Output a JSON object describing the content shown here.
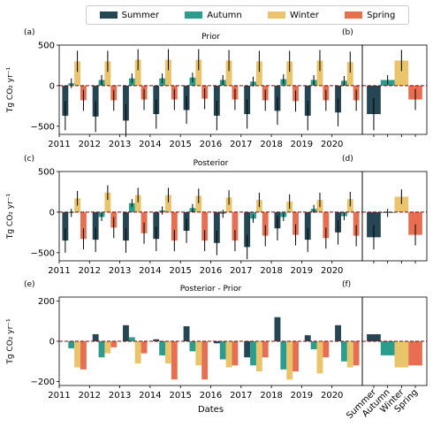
{
  "legend": {
    "placement": "top-center",
    "items": [
      {
        "label": "Summer",
        "color": "#264653"
      },
      {
        "label": "Autumn",
        "color": "#2a9d8f"
      },
      {
        "label": "Winter",
        "color": "#e9c46a"
      },
      {
        "label": "Spring",
        "color": "#e76f51"
      }
    ]
  },
  "chart_data": [
    {
      "type": "bar",
      "panel_label": "(a)",
      "title": "Prior",
      "ylabel": "Tg CO₂ yr⁻¹",
      "ylim": [
        -600,
        500
      ],
      "yticks": [
        -500,
        0,
        500
      ],
      "xtick_labels": [
        "2011",
        "2012",
        "2013",
        "2014",
        "2015",
        "2016",
        "2017",
        "2018",
        "2019",
        "2020"
      ],
      "categories": [
        "2011",
        "2012",
        "2013",
        "2014",
        "2015",
        "2016",
        "2017",
        "2018",
        "2019",
        "2020"
      ],
      "series": [
        {
          "name": "Summer",
          "values": [
            -370,
            -380,
            -430,
            -350,
            -300,
            -370,
            -350,
            -310,
            -370,
            -330
          ],
          "errors": [
            180,
            190,
            200,
            180,
            170,
            180,
            180,
            170,
            180,
            170
          ]
        },
        {
          "name": "Autumn",
          "values": [
            30,
            70,
            90,
            90,
            100,
            70,
            50,
            80,
            70,
            60
          ],
          "errors": [
            60,
            60,
            60,
            60,
            60,
            60,
            60,
            60,
            60,
            60
          ]
        },
        {
          "name": "Winter",
          "values": [
            300,
            300,
            320,
            320,
            320,
            310,
            300,
            300,
            310,
            290
          ],
          "errors": [
            130,
            130,
            130,
            130,
            130,
            130,
            130,
            130,
            130,
            130
          ]
        },
        {
          "name": "Spring",
          "values": [
            -180,
            -180,
            -170,
            -170,
            -160,
            -170,
            -180,
            -190,
            -180,
            -180
          ],
          "errors": [
            130,
            130,
            130,
            130,
            130,
            130,
            130,
            130,
            130,
            130
          ]
        }
      ]
    },
    {
      "type": "bar",
      "panel_label": "(b)",
      "ylim": [
        -600,
        500
      ],
      "categories": [
        "Summer",
        "Autumn",
        "Winter",
        "Spring"
      ],
      "values": [
        -350,
        70,
        310,
        -170
      ],
      "errors": [
        200,
        60,
        130,
        130
      ]
    },
    {
      "type": "bar",
      "panel_label": "(c)",
      "title": "Posterior",
      "ylabel": "Tg CO₂ yr⁻¹",
      "ylim": [
        -600,
        500
      ],
      "yticks": [
        -500,
        0,
        500
      ],
      "xtick_labels": [
        "2011",
        "2012",
        "2013",
        "2014",
        "2015",
        "2016",
        "2017",
        "2018",
        "2019",
        "2020"
      ],
      "categories": [
        "2011",
        "2012",
        "2013",
        "2014",
        "2015",
        "2016",
        "2017",
        "2018",
        "2019",
        "2020"
      ],
      "series": [
        {
          "name": "Summer",
          "values": [
            -350,
            -340,
            -350,
            -330,
            -230,
            -380,
            -430,
            -200,
            -340,
            -250
          ],
          "errors": [
            150,
            150,
            150,
            150,
            150,
            150,
            150,
            150,
            150,
            150
          ]
        },
        {
          "name": "Autumn",
          "values": [
            -10,
            -60,
            110,
            20,
            50,
            -20,
            -80,
            -60,
            40,
            -50
          ],
          "errors": [
            50,
            50,
            50,
            50,
            50,
            50,
            50,
            50,
            50,
            50
          ]
        },
        {
          "name": "Winter",
          "values": [
            170,
            240,
            210,
            210,
            200,
            180,
            150,
            130,
            150,
            160
          ],
          "errors": [
            90,
            90,
            90,
            90,
            90,
            90,
            90,
            90,
            90,
            90
          ]
        },
        {
          "name": "Spring",
          "values": [
            -330,
            -190,
            -260,
            -350,
            -350,
            -350,
            -290,
            -280,
            -320,
            -290
          ],
          "errors": [
            130,
            130,
            130,
            130,
            130,
            130,
            130,
            130,
            130,
            130
          ]
        }
      ]
    },
    {
      "type": "bar",
      "panel_label": "(d)",
      "ylim": [
        -600,
        500
      ],
      "categories": [
        "Summer",
        "Autumn",
        "Winter",
        "Spring"
      ],
      "values": [
        -310,
        -10,
        190,
        -280
      ],
      "errors": [
        150,
        50,
        90,
        130
      ]
    },
    {
      "type": "bar",
      "panel_label": "(e)",
      "title": "Posterior - Prior",
      "ylabel": "Tg CO₂ yr⁻¹",
      "xlabel": "Dates",
      "ylim": [
        -220,
        220
      ],
      "yticks": [
        -200,
        0,
        200
      ],
      "xtick_labels": [
        "2011",
        "2012",
        "2013",
        "2014",
        "2015",
        "2016",
        "2017",
        "2018",
        "2019",
        "2020"
      ],
      "categories": [
        "2011",
        "2012",
        "2013",
        "2014",
        "2015",
        "2016",
        "2017",
        "2018",
        "2019",
        "2020"
      ],
      "series": [
        {
          "name": "Summer",
          "values": [
            0,
            35,
            80,
            10,
            75,
            -10,
            -80,
            120,
            30,
            80
          ]
        },
        {
          "name": "Autumn",
          "values": [
            -35,
            -80,
            20,
            -70,
            -50,
            -90,
            -120,
            -140,
            -40,
            -100
          ]
        },
        {
          "name": "Winter",
          "values": [
            -130,
            -60,
            -110,
            -110,
            -120,
            -130,
            -150,
            -190,
            -160,
            -130
          ]
        },
        {
          "name": "Spring",
          "values": [
            -140,
            -30,
            -60,
            -190,
            -190,
            -120,
            -80,
            -150,
            -80,
            -120
          ]
        }
      ]
    },
    {
      "type": "bar",
      "panel_label": "(f)",
      "ylim": [
        -220,
        220
      ],
      "categories": [
        "Summer",
        "Autumn",
        "Winter",
        "Spring"
      ],
      "values": [
        35,
        -70,
        -130,
        -120
      ]
    }
  ]
}
